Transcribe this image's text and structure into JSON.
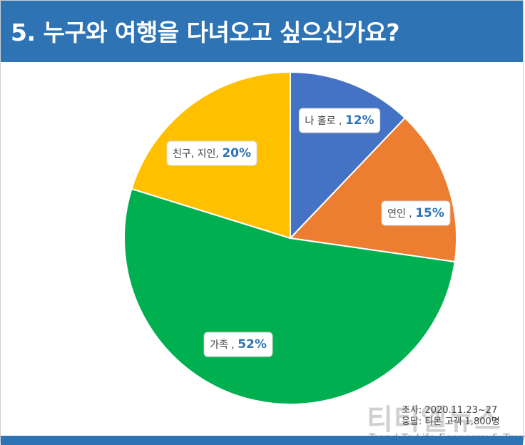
{
  "header": {
    "title": "5. 누구와 여행을 다녀오고 싶으신가요?"
  },
  "chart_data": {
    "type": "pie",
    "title": "5. 누구와 여행을 다녀오고 싶으신가요?",
    "slices": [
      {
        "label": "나 홀로 ,",
        "value": 12,
        "value_text": "12%",
        "color": "#4472c4"
      },
      {
        "label": "연인 ,",
        "value": 15,
        "value_text": "15%",
        "color": "#ed7d31"
      },
      {
        "label": "가족 ,",
        "value": 52,
        "value_text": "52%",
        "color": "#00b050"
      },
      {
        "label": "친구, 지인,",
        "value": 20,
        "value_text": "20%",
        "color": "#ffc000"
      }
    ],
    "start_angle_deg": 0,
    "direction": "clockwise"
  },
  "survey": {
    "period": "조사: 2020.11.23~27",
    "respondents": "응답: 티몬 고객 1,800명"
  },
  "watermark": {
    "logo": "티티엘뉴스",
    "tagline": "Trend To Life Economy & Travel"
  },
  "colors": {
    "header": "#2e74b5",
    "value_text": "#2e74b5"
  }
}
